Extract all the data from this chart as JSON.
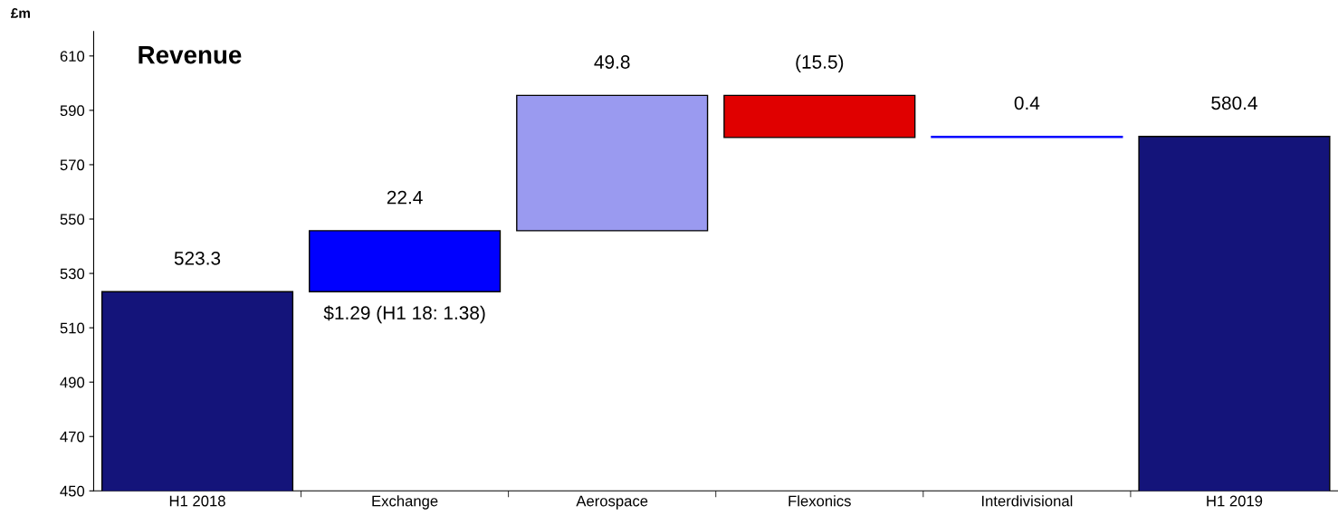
{
  "chart_data": {
    "type": "bar",
    "title": "Revenue",
    "ylabel": "£m",
    "categories": [
      "H1 2018",
      "Exchange",
      "Aerospace",
      "Flexonics",
      "Interdivisional",
      "H1 2019"
    ],
    "values": [
      523.3,
      22.4,
      49.8,
      -15.5,
      0.4,
      580.4
    ],
    "base": [
      0,
      523.3,
      545.7,
      595.5,
      580,
      0
    ],
    "colors": [
      "#14147a",
      "#0000ff",
      "#9a9af0",
      "#e00000",
      "#0000ff",
      "#14147a"
    ],
    "value_labels": [
      "523.3",
      "22.4",
      "49.8",
      "(15.5)",
      "0.4",
      "580.4"
    ],
    "annotations": [
      {
        "text": "$1.29 (H1 18: 1.38)",
        "x": "Exchange",
        "y": 523.3
      }
    ],
    "ylim": [
      450,
      619
    ],
    "yticks": [
      450,
      470,
      490,
      510,
      530,
      550,
      570,
      590,
      610
    ],
    "grid": false,
    "legend": false
  }
}
